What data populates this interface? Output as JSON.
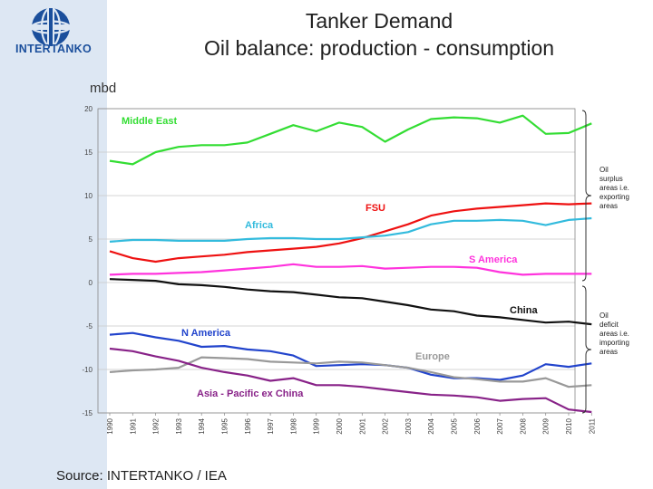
{
  "header": {
    "logo_text": "INTERTANKO",
    "title_line1": "Tanker Demand",
    "title_line2": "Oil balance: production - consumption"
  },
  "unit_label": "mbd",
  "source": "Source: INTERTANKO / IEA",
  "annotations": {
    "surplus": [
      "Oil",
      "surplus",
      "areas i.e.",
      "exporting",
      "areas"
    ],
    "deficit": [
      "Oil",
      "deficit",
      "areas i.e.",
      "importing",
      "areas"
    ]
  },
  "colors": {
    "grid": "#c8c8c8",
    "axis": "#888888"
  },
  "chart_data": {
    "type": "line",
    "title": "Oil balance: production - consumption",
    "ylabel": "mbd",
    "ylim": [
      -15,
      20
    ],
    "yticks": [
      20,
      15,
      10,
      5,
      0,
      -5,
      -10,
      -15
    ],
    "x": [
      1990,
      1991,
      1992,
      1993,
      1994,
      1995,
      1996,
      1997,
      1998,
      1999,
      2000,
      2001,
      2002,
      2003,
      2004,
      2005,
      2006,
      2007,
      2008,
      2009,
      2010,
      2011
    ],
    "grid": true,
    "series": [
      {
        "name": "Middle East",
        "color": "#33dd33",
        "label_pos": "left",
        "values": [
          14.0,
          13.6,
          15.0,
          15.6,
          15.8,
          15.8,
          16.1,
          17.1,
          18.1,
          17.4,
          18.4,
          17.9,
          16.2,
          17.6,
          18.8,
          19.0,
          18.9,
          18.4,
          19.2,
          17.1,
          17.2,
          18.3
        ]
      },
      {
        "name": "FSU",
        "color": "#ee1111",
        "label_pos": "right",
        "values": [
          3.6,
          2.8,
          2.4,
          2.8,
          3.0,
          3.2,
          3.5,
          3.7,
          3.9,
          4.1,
          4.5,
          5.1,
          5.9,
          6.7,
          7.7,
          8.2,
          8.5,
          8.7,
          8.9,
          9.1,
          9.0,
          9.1
        ]
      },
      {
        "name": "Africa",
        "color": "#33bbdd",
        "label_pos": "left",
        "values": [
          4.7,
          4.9,
          4.9,
          4.8,
          4.8,
          4.8,
          5.0,
          5.1,
          5.1,
          5.0,
          5.0,
          5.2,
          5.4,
          5.8,
          6.7,
          7.1,
          7.1,
          7.2,
          7.1,
          6.6,
          7.2,
          7.4
        ]
      },
      {
        "name": "S America",
        "color": "#ff33dd",
        "label_pos": "right",
        "values": [
          0.9,
          1.0,
          1.0,
          1.1,
          1.2,
          1.4,
          1.6,
          1.8,
          2.1,
          1.8,
          1.8,
          1.9,
          1.6,
          1.7,
          1.8,
          1.8,
          1.7,
          1.2,
          0.9,
          1.0,
          1.0,
          1.0
        ]
      },
      {
        "name": "China",
        "color": "#111111",
        "label_pos": "right",
        "values": [
          0.4,
          0.3,
          0.2,
          -0.2,
          -0.3,
          -0.5,
          -0.8,
          -1.0,
          -1.1,
          -1.4,
          -1.7,
          -1.8,
          -2.2,
          -2.6,
          -3.1,
          -3.3,
          -3.8,
          -4.0,
          -4.3,
          -4.6,
          -4.5,
          -4.8
        ]
      },
      {
        "name": "N America",
        "color": "#2244cc",
        "label_pos": "left",
        "values": [
          -6.0,
          -5.8,
          -6.3,
          -6.7,
          -7.4,
          -7.3,
          -7.7,
          -7.9,
          -8.4,
          -9.6,
          -9.5,
          -9.4,
          -9.5,
          -9.8,
          -10.6,
          -11.0,
          -11.0,
          -11.2,
          -10.7,
          -9.4,
          -9.7,
          -9.3
        ]
      },
      {
        "name": "Europe",
        "color": "#999999",
        "label_pos": "right",
        "values": [
          -10.3,
          -10.1,
          -10.0,
          -9.8,
          -8.6,
          -8.7,
          -8.8,
          -9.1,
          -9.2,
          -9.3,
          -9.1,
          -9.2,
          -9.5,
          -9.8,
          -10.3,
          -10.9,
          -11.1,
          -11.4,
          -11.4,
          -11.0,
          -12.0,
          -11.8
        ]
      },
      {
        "name": "Asia - Pacific ex China",
        "color": "#882288",
        "label_pos": "left",
        "values": [
          -7.6,
          -7.9,
          -8.5,
          -9.0,
          -9.8,
          -10.3,
          -10.7,
          -11.3,
          -11.0,
          -11.8,
          -11.8,
          -12.0,
          -12.3,
          -12.6,
          -12.9,
          -13.0,
          -13.2,
          -13.6,
          -13.4,
          -13.3,
          -14.6,
          -14.9
        ]
      }
    ]
  }
}
